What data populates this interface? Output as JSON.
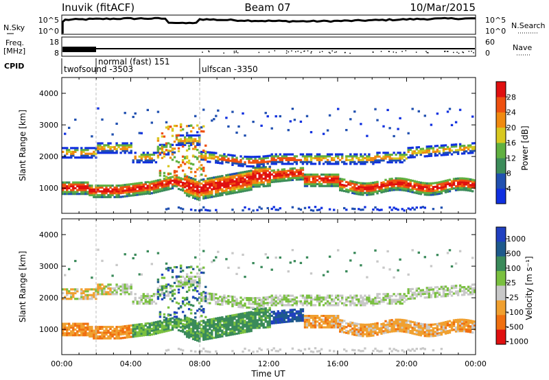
{
  "header": {
    "station": "Inuvik (fitACF)",
    "beam": "Beam 07",
    "date": "10/Mar/2015"
  },
  "strips": {
    "nsky_label": "N.Sky",
    "nsky_ticks": [
      "10^5",
      "10^0"
    ],
    "nsearch_label": "N.Search",
    "freq_label_1": "Freq.",
    "freq_label_2": "[MHz]",
    "freq_ticks": [
      "18",
      "8"
    ],
    "nave_label": "Nave",
    "nave_ticks": [
      "60",
      "0"
    ],
    "cpid_label": "CPID",
    "cpid_segments": [
      "twofsound -3503",
      "normal (fast) 151",
      "ulfscan -3350"
    ]
  },
  "colors": {
    "power": [
      "#1030e0",
      "#2050b0",
      "#3c8c5a",
      "#60b040",
      "#d8c820",
      "#f08a10",
      "#ee5010",
      "#e01010"
    ],
    "velocity": [
      "#2040c0",
      "#1e5a8c",
      "#3a8a5a",
      "#7ac040",
      "#c8c8c8",
      "#f0a030",
      "#f07010",
      "#e01010"
    ]
  },
  "chart_data": [
    {
      "type": "heatmap",
      "ylabel": "Slant Range [km]",
      "ylim": [
        200,
        4500
      ],
      "y_ticks": [
        "1000",
        "2000",
        "3000",
        "4000"
      ],
      "x_ticks": [
        "00:00",
        "04:00",
        "08:00",
        "12:00",
        "16:00",
        "20:00",
        "00:00"
      ],
      "colorbar_label": "Power [dB]",
      "colorbar_ticks": [
        "4",
        "8",
        "12",
        "16",
        "20",
        "24",
        "28"
      ],
      "scale_range": [
        0,
        30
      ]
    },
    {
      "type": "heatmap",
      "ylabel": "Slant Range [km]",
      "ylim": [
        200,
        4500
      ],
      "y_ticks": [
        "1000",
        "2000",
        "3000",
        "4000"
      ],
      "x_ticks": [
        "00:00",
        "04:00",
        "08:00",
        "12:00",
        "16:00",
        "20:00",
        "00:00"
      ],
      "xlabel": "Time UT",
      "colorbar_label": "Velocity [m s⁻¹]",
      "colorbar_ticks": [
        "1000",
        "500",
        "100",
        "25",
        "-25",
        "-100",
        "-500",
        "-1000"
      ]
    }
  ]
}
